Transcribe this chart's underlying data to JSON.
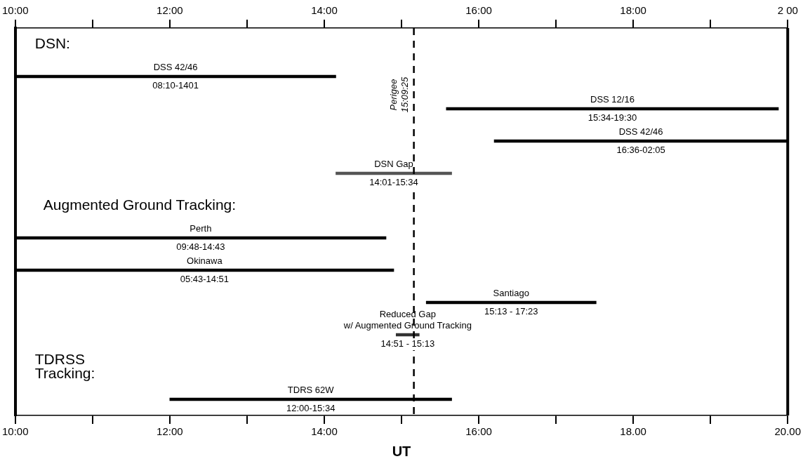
{
  "chart_data": {
    "type": "bar",
    "orientation": "horizontal",
    "xlabel": "UT",
    "categories": [
      null,
      "DSS 42/46",
      "DSS 12/16",
      "DSS 42/46",
      "DSN Gap",
      null,
      "Perth",
      "Okinawa",
      "Santiago",
      "Reduced Gap\nw/ Augmented Ground Tracking",
      null,
      "TDRS 62W"
    ],
    "base": [
      null,
      10,
      15.58,
      16.2,
      14.15,
      null,
      10,
      10,
      15.32,
      14.93,
      null,
      12
    ],
    "values": [
      null,
      4.15,
      4.3,
      3.8,
      1.5,
      null,
      4.8,
      4.9,
      2.2,
      0.3,
      null,
      3.65
    ],
    "colors": [
      "#000000",
      "#000000",
      "#000000",
      "#000000",
      "#555555",
      "#000000",
      "#000000",
      "#000000",
      "#000000",
      "#333333",
      "#000000",
      "#000000"
    ],
    "value_labels": [
      null,
      "08:10-1401",
      "15:34-19:30",
      "16:36-02:05",
      "14:01-15:34",
      null,
      "09:48-14:43",
      "05:43-14:51",
      "15:13 - 17:23",
      "14:51 - 15:13",
      null,
      "12:00-15:34"
    ],
    "xlim": [
      10,
      20
    ],
    "xticks": [
      {
        "value": 10,
        "label": "10:00"
      },
      {
        "value": 11,
        "label": null
      },
      {
        "value": 12,
        "label": "12:00"
      },
      {
        "value": 13,
        "label": null
      },
      {
        "value": 14,
        "label": "14:00"
      },
      {
        "value": 15,
        "label": null
      },
      {
        "value": 16,
        "label": "16:00"
      },
      {
        "value": 17,
        "label": null
      },
      {
        "value": 18,
        "label": "18.00"
      },
      {
        "value": 19,
        "label": null
      },
      {
        "value": 20,
        "label": "20.00"
      }
    ],
    "x2lim": [
      10,
      20
    ],
    "x2ticks": [
      {
        "value": 10,
        "label": "10:00"
      },
      {
        "value": 11,
        "label": null
      },
      {
        "value": 12,
        "label": "12:00"
      },
      {
        "value": 13,
        "label": null
      },
      {
        "value": 14,
        "label": "14:00"
      },
      {
        "value": 15,
        "label": null
      },
      {
        "value": 16,
        "label": "16:00"
      },
      {
        "value": 17,
        "label": null
      },
      {
        "value": 18,
        "label": "18:00"
      },
      {
        "value": 19,
        "label": null
      },
      {
        "value": 20,
        "label": "2 00"
      }
    ],
    "ref_lines": [
      {
        "axis": "x",
        "value": 15.16,
        "label": "Perigee 15:09:25",
        "line_style": "dashed"
      }
    ],
    "annotations": [
      "DSN:",
      "Augmented Ground Tracking:",
      "TDRSS\nTracking:"
    ],
    "legend": false
  }
}
